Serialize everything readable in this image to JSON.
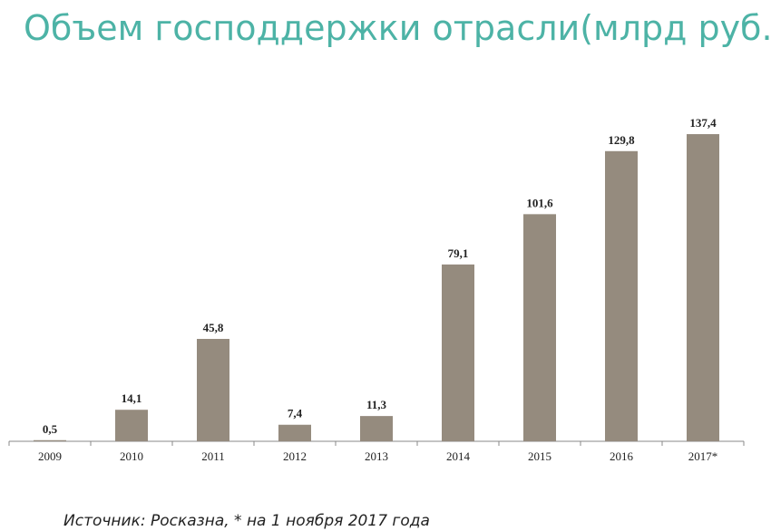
{
  "chart_data": {
    "type": "bar",
    "title": "Объем господдержки отрасли(млрд руб.)",
    "categories": [
      "2009",
      "2010",
      "2011",
      "2012",
      "2013",
      "2014",
      "2015",
      "2016",
      "2017*"
    ],
    "values": [
      0.5,
      14.1,
      45.8,
      7.4,
      11.3,
      79.1,
      101.6,
      129.8,
      137.4
    ],
    "value_labels": [
      "0,5",
      "14,1",
      "45,8",
      "7,4",
      "11,3",
      "79,1",
      "101,6",
      "129,8",
      "137,4"
    ],
    "color": "#958b7e",
    "source": "Источник: Росказна, * на 1 ноября 2017 года"
  }
}
